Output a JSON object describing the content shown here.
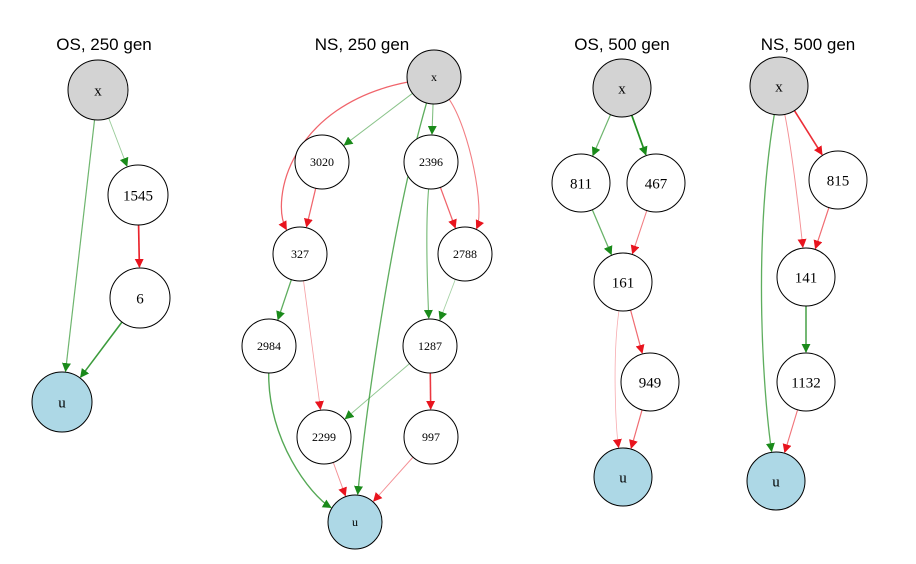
{
  "colors": {
    "input": "#d3d3d3",
    "output": "#add8e6",
    "hidden": "#ffffff",
    "positive": "#1a8a1a",
    "negative": "#e8141e"
  },
  "panels": [
    {
      "title": "OS, 250 gen",
      "nodes": [
        {
          "id": "x",
          "label": "x",
          "kind": "input"
        },
        {
          "id": "n1545",
          "label": "1545",
          "kind": "hidden"
        },
        {
          "id": "n6",
          "label": "6",
          "kind": "hidden"
        },
        {
          "id": "u",
          "label": "u",
          "kind": "output"
        }
      ],
      "edges": [
        {
          "from": "x",
          "to": "n1545",
          "sign": "positive",
          "weight": 0.25
        },
        {
          "from": "x",
          "to": "u",
          "sign": "positive",
          "weight": 0.5
        },
        {
          "from": "n1545",
          "to": "n6",
          "sign": "negative",
          "weight": 0.9
        },
        {
          "from": "n6",
          "to": "u",
          "sign": "positive",
          "weight": 0.8
        }
      ]
    },
    {
      "title": "NS, 250 gen",
      "nodes": [
        {
          "id": "x",
          "label": "x",
          "kind": "input"
        },
        {
          "id": "n3020",
          "label": "3020",
          "kind": "hidden"
        },
        {
          "id": "n2396",
          "label": "2396",
          "kind": "hidden"
        },
        {
          "id": "n327",
          "label": "327",
          "kind": "hidden"
        },
        {
          "id": "n2788",
          "label": "2788",
          "kind": "hidden"
        },
        {
          "id": "n2984",
          "label": "2984",
          "kind": "hidden"
        },
        {
          "id": "n1287",
          "label": "1287",
          "kind": "hidden"
        },
        {
          "id": "n2299",
          "label": "2299",
          "kind": "hidden"
        },
        {
          "id": "n997",
          "label": "997",
          "kind": "hidden"
        },
        {
          "id": "u",
          "label": "u",
          "kind": "output"
        }
      ],
      "edges": [
        {
          "from": "x",
          "to": "n3020",
          "sign": "positive",
          "weight": 0.35
        },
        {
          "from": "x",
          "to": "n2396",
          "sign": "positive",
          "weight": 0.4
        },
        {
          "from": "x",
          "to": "n327",
          "sign": "negative",
          "weight": 0.55
        },
        {
          "from": "x",
          "to": "n2788",
          "sign": "negative",
          "weight": 0.4
        },
        {
          "from": "x",
          "to": "u",
          "sign": "positive",
          "weight": 0.6
        },
        {
          "from": "n3020",
          "to": "n327",
          "sign": "negative",
          "weight": 0.55
        },
        {
          "from": "n2396",
          "to": "n2788",
          "sign": "negative",
          "weight": 0.55
        },
        {
          "from": "n2396",
          "to": "n1287",
          "sign": "positive",
          "weight": 0.45
        },
        {
          "from": "n2788",
          "to": "n1287",
          "sign": "positive",
          "weight": 0.2
        },
        {
          "from": "n327",
          "to": "n2984",
          "sign": "positive",
          "weight": 0.6
        },
        {
          "from": "n327",
          "to": "n2299",
          "sign": "negative",
          "weight": 0.2
        },
        {
          "from": "n1287",
          "to": "n2299",
          "sign": "positive",
          "weight": 0.3
        },
        {
          "from": "n1287",
          "to": "n997",
          "sign": "negative",
          "weight": 0.8
        },
        {
          "from": "n2984",
          "to": "u",
          "sign": "positive",
          "weight": 0.65
        },
        {
          "from": "n2299",
          "to": "u",
          "sign": "negative",
          "weight": 0.3
        },
        {
          "from": "n997",
          "to": "u",
          "sign": "negative",
          "weight": 0.3
        }
      ]
    },
    {
      "title": "OS, 500 gen",
      "nodes": [
        {
          "id": "x",
          "label": "x",
          "kind": "input"
        },
        {
          "id": "n811",
          "label": "811",
          "kind": "hidden"
        },
        {
          "id": "n467",
          "label": "467",
          "kind": "hidden"
        },
        {
          "id": "n161",
          "label": "161",
          "kind": "hidden"
        },
        {
          "id": "n949",
          "label": "949",
          "kind": "hidden"
        },
        {
          "id": "u",
          "label": "u",
          "kind": "output"
        }
      ],
      "edges": [
        {
          "from": "x",
          "to": "n811",
          "sign": "positive",
          "weight": 0.5
        },
        {
          "from": "x",
          "to": "n467",
          "sign": "positive",
          "weight": 0.95
        },
        {
          "from": "n811",
          "to": "n161",
          "sign": "positive",
          "weight": 0.55
        },
        {
          "from": "n467",
          "to": "n161",
          "sign": "negative",
          "weight": 0.4
        },
        {
          "from": "n161",
          "to": "n949",
          "sign": "negative",
          "weight": 0.5
        },
        {
          "from": "n161",
          "to": "u",
          "sign": "negative",
          "weight": 0.15
        },
        {
          "from": "n949",
          "to": "u",
          "sign": "negative",
          "weight": 0.5
        }
      ]
    },
    {
      "title": "NS, 500 gen",
      "nodes": [
        {
          "id": "x",
          "label": "x",
          "kind": "input"
        },
        {
          "id": "n815",
          "label": "815",
          "kind": "hidden"
        },
        {
          "id": "n141",
          "label": "141",
          "kind": "hidden"
        },
        {
          "id": "n1132",
          "label": "1132",
          "kind": "hidden"
        },
        {
          "id": "u",
          "label": "u",
          "kind": "output"
        }
      ],
      "edges": [
        {
          "from": "x",
          "to": "n815",
          "sign": "negative",
          "weight": 0.85
        },
        {
          "from": "x",
          "to": "n141",
          "sign": "negative",
          "weight": 0.3
        },
        {
          "from": "x",
          "to": "u",
          "sign": "positive",
          "weight": 0.6
        },
        {
          "from": "n815",
          "to": "n141",
          "sign": "negative",
          "weight": 0.5
        },
        {
          "from": "n141",
          "to": "n1132",
          "sign": "positive",
          "weight": 0.75
        },
        {
          "from": "n1132",
          "to": "u",
          "sign": "negative",
          "weight": 0.45
        }
      ]
    }
  ]
}
